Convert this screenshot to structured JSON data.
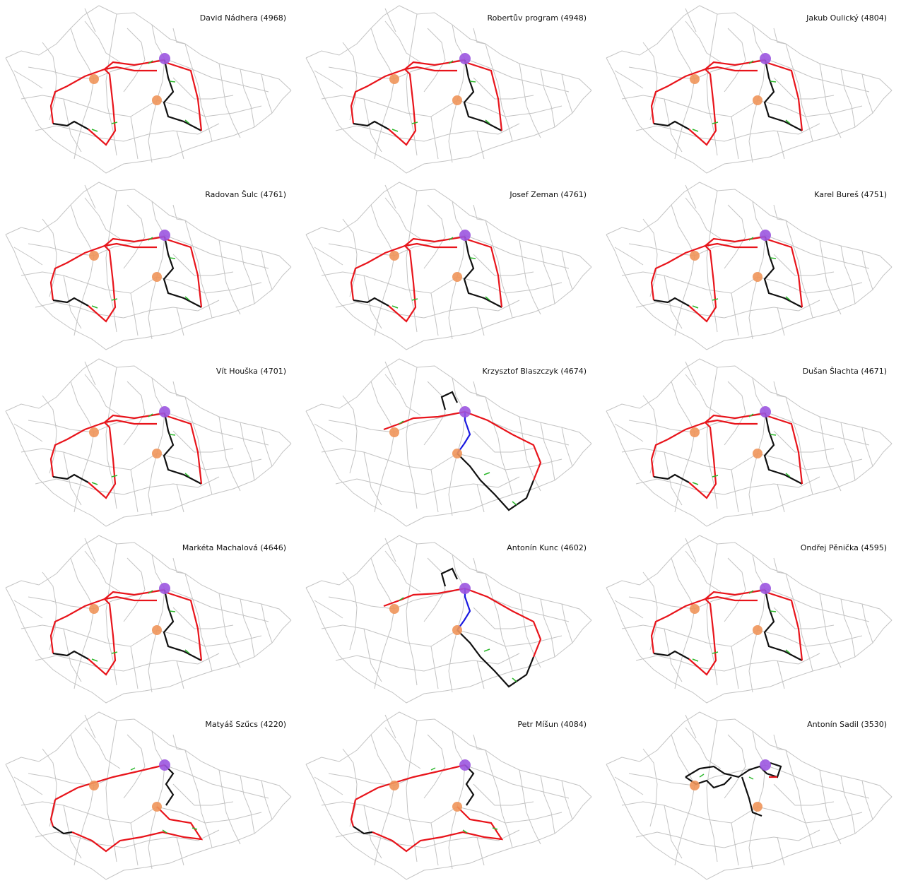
{
  "panels": [
    {
      "title": "David Nádhera (4968)"
    },
    {
      "title": "Robertův program (4948)"
    },
    {
      "title": "Jakub Oulický (4804)"
    },
    {
      "title": "Radovan Šulc (4761)"
    },
    {
      "title": "Josef Zeman (4761)"
    },
    {
      "title": "Karel Bureš (4751)"
    },
    {
      "title": "Vít Houška (4701)"
    },
    {
      "title": "Krzysztof Blaszczyk (4674)"
    },
    {
      "title": "Dušan Šlachta (4671)"
    },
    {
      "title": "Markéta Machalová (4646)"
    },
    {
      "title": "Antonín Kunc (4602)"
    },
    {
      "title": "Ondřej Pěnička (4595)"
    },
    {
      "title": "Matyáš Szűcs (4220)"
    },
    {
      "title": "Petr Míšun (4084)"
    },
    {
      "title": "Antonín Sadil (3530)"
    }
  ]
}
